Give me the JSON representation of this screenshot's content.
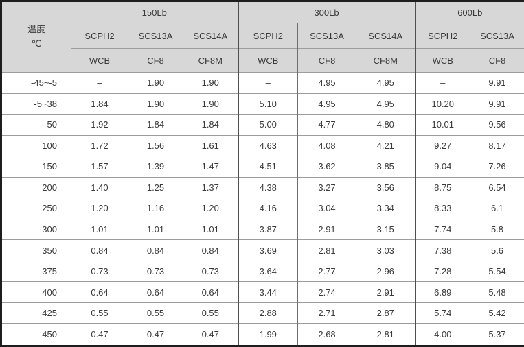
{
  "table": {
    "temp_header": {
      "line1": "温度",
      "line2": "℃"
    },
    "groups": [
      {
        "label": "150Lb",
        "cols": [
          {
            "grade": "SCPH2",
            "material": "WCB"
          },
          {
            "grade": "SCS13A",
            "material": "CF8"
          },
          {
            "grade": "SCS14A",
            "material": "CF8M"
          }
        ]
      },
      {
        "label": "300Lb",
        "cols": [
          {
            "grade": "SCPH2",
            "material": "WCB"
          },
          {
            "grade": "SCS13A",
            "material": "CF8"
          },
          {
            "grade": "SCS14A",
            "material": "CF8M"
          }
        ]
      },
      {
        "label": "600Lb",
        "cols": [
          {
            "grade": "SCPH2",
            "material": "WCB"
          },
          {
            "grade": "SCS13A",
            "material": "CF8"
          }
        ]
      }
    ],
    "rows": [
      {
        "temp": "-45~-5",
        "values": [
          "–",
          "1.90",
          "1.90",
          "–",
          "4.95",
          "4.95",
          "–",
          "9.91"
        ]
      },
      {
        "temp": "-5~38",
        "values": [
          "1.84",
          "1.90",
          "1.90",
          "5.10",
          "4.95",
          "4.95",
          "10.20",
          "9.91"
        ]
      },
      {
        "temp": "50",
        "values": [
          "1.92",
          "1.84",
          "1.84",
          "5.00",
          "4.77",
          "4.80",
          "10.01",
          "9.56"
        ]
      },
      {
        "temp": "100",
        "values": [
          "1.72",
          "1.56",
          "1.61",
          "4.63",
          "4.08",
          "4.21",
          "9.27",
          "8.17"
        ]
      },
      {
        "temp": "150",
        "values": [
          "1.57",
          "1.39",
          "1.47",
          "4.51",
          "3.62",
          "3.85",
          "9.04",
          "7.26"
        ]
      },
      {
        "temp": "200",
        "values": [
          "1.40",
          "1.25",
          "1.37",
          "4.38",
          "3.27",
          "3.56",
          "8.75",
          "6.54"
        ]
      },
      {
        "temp": "250",
        "values": [
          "1.20",
          "1.16",
          "1.20",
          "4.16",
          "3.04",
          "3.34",
          "8.33",
          "6.1"
        ]
      },
      {
        "temp": "300",
        "values": [
          "1.01",
          "1.01",
          "1.01",
          "3.87",
          "2.91",
          "3.15",
          "7.74",
          "5.8"
        ]
      },
      {
        "temp": "350",
        "values": [
          "0.84",
          "0.84",
          "0.84",
          "3.69",
          "2.81",
          "3.03",
          "7.38",
          "5.6"
        ]
      },
      {
        "temp": "375",
        "values": [
          "0.73",
          "0.73",
          "0.73",
          "3.64",
          "2.77",
          "2.96",
          "7.28",
          "5.54"
        ]
      },
      {
        "temp": "400",
        "values": [
          "0.64",
          "0.64",
          "0.64",
          "3.44",
          "2.74",
          "2.91",
          "6.89",
          "5.48"
        ]
      },
      {
        "temp": "425",
        "values": [
          "0.55",
          "0.55",
          "0.55",
          "2.88",
          "2.71",
          "2.87",
          "5.74",
          "5.42"
        ]
      },
      {
        "temp": "450",
        "values": [
          "0.47",
          "0.47",
          "0.47",
          "1.99",
          "2.68",
          "2.81",
          "4.00",
          "5.37"
        ]
      }
    ],
    "colors": {
      "header_bg": "#d7d7d7",
      "outer_border": "#1e1e1e",
      "vertical_line": "#6f6f6f",
      "horizontal_line": "#9c9c9c",
      "text": "#3a3a3a"
    }
  }
}
